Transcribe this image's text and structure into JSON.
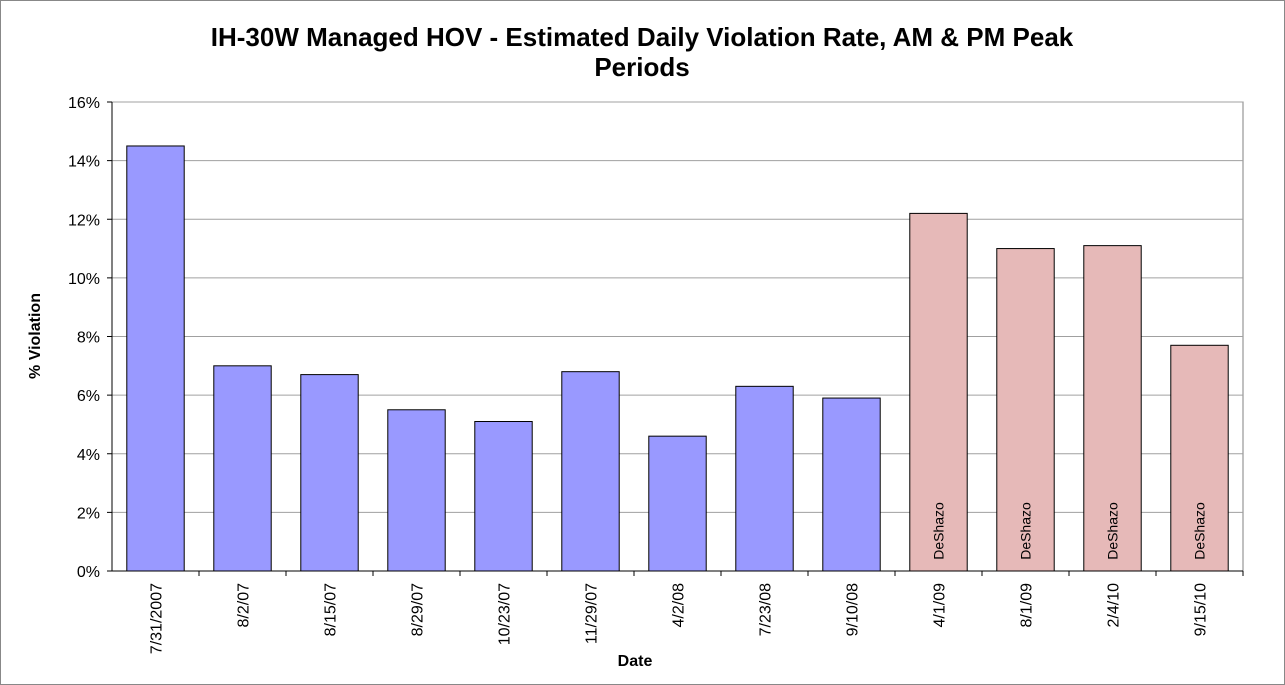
{
  "chart_data": {
    "type": "bar",
    "title": "IH-30W Managed HOV - Estimated Daily Violation Rate, AM & PM Peak Periods",
    "x_label": "Date",
    "y_label": "% Violation",
    "categories": [
      "7/31/2007",
      "8/2/07",
      "8/15/07",
      "8/29/07",
      "10/23/07",
      "11/29/07",
      "4/2/08",
      "7/23/08",
      "9/10/08",
      "4/1/09",
      "8/1/09",
      "2/4/10",
      "9/15/10"
    ],
    "values": [
      14.5,
      7.0,
      6.7,
      5.5,
      5.1,
      6.8,
      4.6,
      6.3,
      5.9,
      12.2,
      11.0,
      11.1,
      7.7
    ],
    "colors": [
      "#9999ff",
      "#9999ff",
      "#9999ff",
      "#9999ff",
      "#9999ff",
      "#9999ff",
      "#9999ff",
      "#9999ff",
      "#9999ff",
      "#e6b9b8",
      "#e6b9b8",
      "#e6b9b8",
      "#e6b9b8"
    ],
    "bar_labels": [
      null,
      null,
      null,
      null,
      null,
      null,
      null,
      null,
      null,
      "DeShazo",
      "DeShazo",
      "DeShazo",
      "DeShazo"
    ],
    "ylim": [
      0,
      16
    ],
    "yticks": [
      {
        "value": 0,
        "label": "0%"
      },
      {
        "value": 2,
        "label": "2%"
      },
      {
        "value": 4,
        "label": "4%"
      },
      {
        "value": 6,
        "label": "6%"
      },
      {
        "value": 8,
        "label": "8%"
      },
      {
        "value": 10,
        "label": "10%"
      },
      {
        "value": 12,
        "label": "12%"
      },
      {
        "value": 14,
        "label": "14%"
      },
      {
        "value": 16,
        "label": "16%"
      }
    ],
    "grid": true
  }
}
